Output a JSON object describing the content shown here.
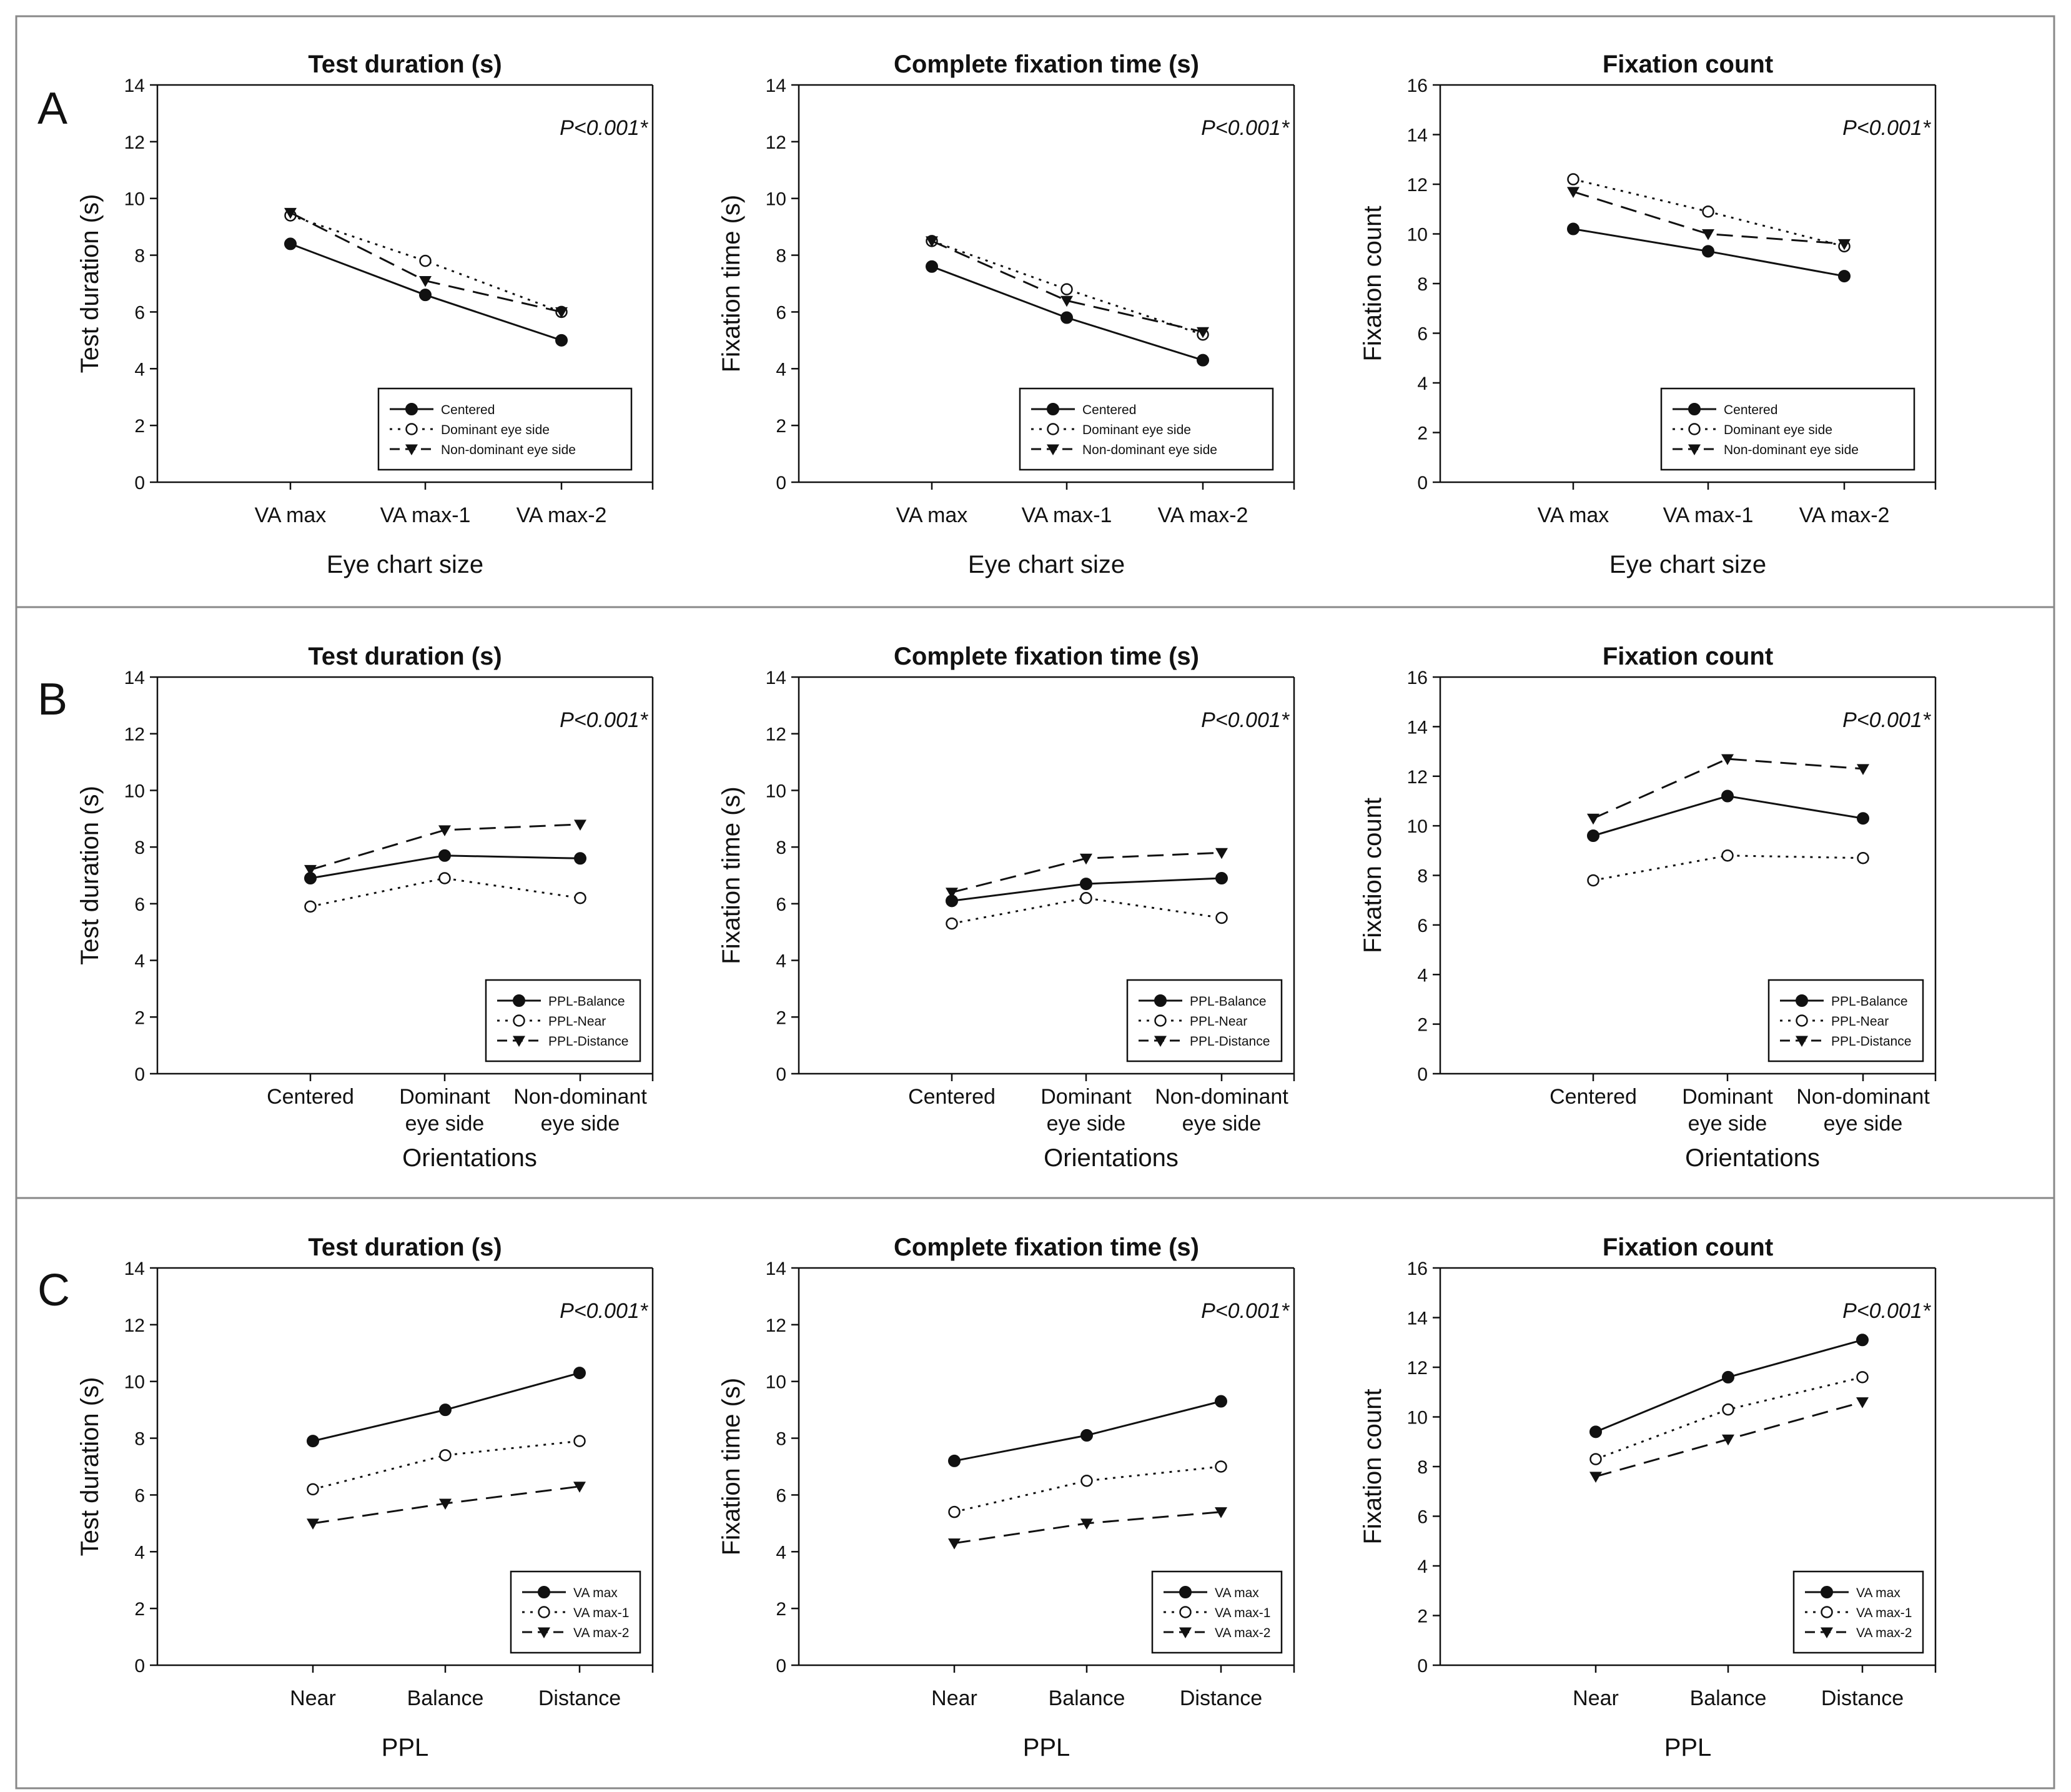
{
  "figure": {
    "row_letters": [
      "A",
      "B",
      "C"
    ]
  },
  "chart_data": [
    {
      "type": "line",
      "row": 0,
      "col": 0,
      "title": "Test duration (s)",
      "xlabel": "Eye chart size",
      "ylabel": "Test duration (s)",
      "categories": [
        "VA max",
        "VA max-1",
        "VA max-2"
      ],
      "ylim": [
        0,
        14
      ],
      "yticks": [
        0,
        2,
        4,
        6,
        8,
        10,
        12,
        14
      ],
      "annotation": "P<0.001*",
      "legend_position": "bottom-right",
      "grid": false,
      "series": [
        {
          "name": "Centered",
          "style": "solid",
          "marker": "filled-circle",
          "values": [
            8.4,
            6.6,
            5.0
          ]
        },
        {
          "name": "Dominant eye side",
          "style": "dotted",
          "marker": "open-circle",
          "values": [
            9.4,
            7.8,
            6.0
          ]
        },
        {
          "name": "Non-dominant eye side",
          "style": "dashed",
          "marker": "triangle-down",
          "values": [
            9.5,
            7.1,
            6.0
          ]
        }
      ]
    },
    {
      "type": "line",
      "row": 0,
      "col": 1,
      "title": "Complete fixation time (s)",
      "xlabel": "Eye chart size",
      "ylabel": "Fixation time (s)",
      "categories": [
        "VA max",
        "VA max-1",
        "VA max-2"
      ],
      "ylim": [
        0,
        14
      ],
      "yticks": [
        0,
        2,
        4,
        6,
        8,
        10,
        12,
        14
      ],
      "annotation": "P<0.001*",
      "legend_position": "bottom-right",
      "grid": false,
      "series": [
        {
          "name": "Centered",
          "style": "solid",
          "marker": "filled-circle",
          "values": [
            7.6,
            5.8,
            4.3
          ]
        },
        {
          "name": "Dominant eye side",
          "style": "dotted",
          "marker": "open-circle",
          "values": [
            8.5,
            6.8,
            5.2
          ]
        },
        {
          "name": "Non-dominant eye side",
          "style": "dashed",
          "marker": "triangle-down",
          "values": [
            8.5,
            6.4,
            5.3
          ]
        }
      ]
    },
    {
      "type": "line",
      "row": 0,
      "col": 2,
      "title": "Fixation count",
      "xlabel": "Eye chart size",
      "ylabel": "Fixation count",
      "categories": [
        "VA max",
        "VA max-1",
        "VA max-2"
      ],
      "ylim": [
        0,
        16
      ],
      "yticks": [
        0,
        2,
        4,
        6,
        8,
        10,
        12,
        14,
        16
      ],
      "annotation": "P<0.001*",
      "legend_position": "bottom-right",
      "grid": false,
      "series": [
        {
          "name": "Centered",
          "style": "solid",
          "marker": "filled-circle",
          "values": [
            10.2,
            9.3,
            8.3
          ]
        },
        {
          "name": "Dominant eye side",
          "style": "dotted",
          "marker": "open-circle",
          "values": [
            12.2,
            10.9,
            9.5
          ]
        },
        {
          "name": "Non-dominant eye side",
          "style": "dashed",
          "marker": "triangle-down",
          "values": [
            11.7,
            10.0,
            9.6
          ]
        }
      ]
    },
    {
      "type": "line",
      "row": 1,
      "col": 0,
      "title": "Test duration (s)",
      "xlabel": "Orientations",
      "ylabel": "Test duration (s)",
      "categories": [
        "Centered",
        "Dominant\neye side",
        "Non-dominant\neye side"
      ],
      "ylim": [
        0,
        14
      ],
      "yticks": [
        0,
        2,
        4,
        6,
        8,
        10,
        12,
        14
      ],
      "annotation": "P<0.001*",
      "legend_position": "bottom-right",
      "grid": false,
      "series": [
        {
          "name": "PPL-Balance",
          "style": "solid",
          "marker": "filled-circle",
          "values": [
            6.9,
            7.7,
            7.6
          ]
        },
        {
          "name": "PPL-Near",
          "style": "dotted",
          "marker": "open-circle",
          "values": [
            5.9,
            6.9,
            6.2
          ]
        },
        {
          "name": "PPL-Distance",
          "style": "dashed",
          "marker": "triangle-down",
          "values": [
            7.2,
            8.6,
            8.8
          ]
        }
      ]
    },
    {
      "type": "line",
      "row": 1,
      "col": 1,
      "title": "Complete fixation time (s)",
      "xlabel": "Orientations",
      "ylabel": "Fixation time (s)",
      "categories": [
        "Centered",
        "Dominant\neye side",
        "Non-dominant\neye side"
      ],
      "ylim": [
        0,
        14
      ],
      "yticks": [
        0,
        2,
        4,
        6,
        8,
        10,
        12,
        14
      ],
      "annotation": "P<0.001*",
      "legend_position": "bottom-right",
      "grid": false,
      "series": [
        {
          "name": "PPL-Balance",
          "style": "solid",
          "marker": "filled-circle",
          "values": [
            6.1,
            6.7,
            6.9
          ]
        },
        {
          "name": "PPL-Near",
          "style": "dotted",
          "marker": "open-circle",
          "values": [
            5.3,
            6.2,
            5.5
          ]
        },
        {
          "name": "PPL-Distance",
          "style": "dashed",
          "marker": "triangle-down",
          "values": [
            6.4,
            7.6,
            7.8
          ]
        }
      ]
    },
    {
      "type": "line",
      "row": 1,
      "col": 2,
      "title": "Fixation count",
      "xlabel": "Orientations",
      "ylabel": "Fixation count",
      "categories": [
        "Centered",
        "Dominant\neye side",
        "Non-dominant\neye side"
      ],
      "ylim": [
        0,
        16
      ],
      "yticks": [
        0,
        2,
        4,
        6,
        8,
        10,
        12,
        14,
        16
      ],
      "annotation": "P<0.001*",
      "legend_position": "bottom-right",
      "grid": false,
      "series": [
        {
          "name": "PPL-Balance",
          "style": "solid",
          "marker": "filled-circle",
          "values": [
            9.6,
            11.2,
            10.3
          ]
        },
        {
          "name": "PPL-Near",
          "style": "dotted",
          "marker": "open-circle",
          "values": [
            7.8,
            8.8,
            8.7
          ]
        },
        {
          "name": "PPL-Distance",
          "style": "dashed",
          "marker": "triangle-down",
          "values": [
            10.3,
            12.7,
            12.3
          ]
        }
      ]
    },
    {
      "type": "line",
      "row": 2,
      "col": 0,
      "title": "Test duration (s)",
      "xlabel": "PPL",
      "ylabel": "Test duration (s)",
      "categories": [
        "Near",
        "Balance",
        "Distance"
      ],
      "ylim": [
        0,
        14
      ],
      "yticks": [
        0,
        2,
        4,
        6,
        8,
        10,
        12,
        14
      ],
      "annotation": "P<0.001*",
      "legend_position": "bottom-right",
      "grid": false,
      "series": [
        {
          "name": "VA max",
          "style": "solid",
          "marker": "filled-circle",
          "values": [
            7.9,
            9.0,
            10.3
          ]
        },
        {
          "name": "VA max-1",
          "style": "dotted",
          "marker": "open-circle",
          "values": [
            6.2,
            7.4,
            7.9
          ]
        },
        {
          "name": "VA max-2",
          "style": "dashed",
          "marker": "triangle-down",
          "values": [
            5.0,
            5.7,
            6.3
          ]
        }
      ]
    },
    {
      "type": "line",
      "row": 2,
      "col": 1,
      "title": "Complete fixation time (s)",
      "xlabel": "PPL",
      "ylabel": "Fixation time (s)",
      "categories": [
        "Near",
        "Balance",
        "Distance"
      ],
      "ylim": [
        0,
        14
      ],
      "yticks": [
        0,
        2,
        4,
        6,
        8,
        10,
        12,
        14
      ],
      "annotation": "P<0.001*",
      "legend_position": "bottom-right",
      "grid": false,
      "series": [
        {
          "name": "VA max",
          "style": "solid",
          "marker": "filled-circle",
          "values": [
            7.2,
            8.1,
            9.3
          ]
        },
        {
          "name": "VA max-1",
          "style": "dotted",
          "marker": "open-circle",
          "values": [
            5.4,
            6.5,
            7.0
          ]
        },
        {
          "name": "VA max-2",
          "style": "dashed",
          "marker": "triangle-down",
          "values": [
            4.3,
            5.0,
            5.4
          ]
        }
      ]
    },
    {
      "type": "line",
      "row": 2,
      "col": 2,
      "title": "Fixation count",
      "xlabel": "PPL",
      "ylabel": "Fixation count",
      "categories": [
        "Near",
        "Balance",
        "Distance"
      ],
      "ylim": [
        0,
        16
      ],
      "yticks": [
        0,
        2,
        4,
        6,
        8,
        10,
        12,
        14,
        16
      ],
      "annotation": "P<0.001*",
      "legend_position": "bottom-right",
      "grid": false,
      "series": [
        {
          "name": "VA max",
          "style": "solid",
          "marker": "filled-circle",
          "values": [
            9.4,
            11.6,
            13.1
          ]
        },
        {
          "name": "VA max-1",
          "style": "dotted",
          "marker": "open-circle",
          "values": [
            8.3,
            10.3,
            11.6
          ]
        },
        {
          "name": "VA max-2",
          "style": "dashed",
          "marker": "triangle-down",
          "values": [
            7.6,
            9.1,
            10.6
          ]
        }
      ]
    }
  ]
}
